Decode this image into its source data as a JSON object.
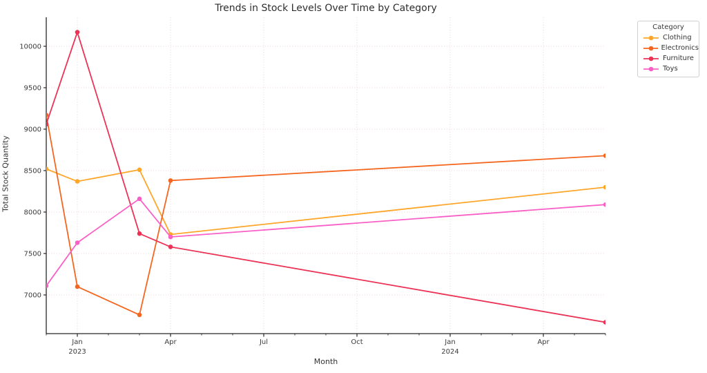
{
  "chart_data": {
    "type": "line",
    "title": "Trends in Stock Levels Over Time by Category",
    "xlabel": "Month",
    "ylabel": "Total Stock Quantity",
    "x": [
      "Dec 2022",
      "Jan 2023",
      "Mar 2023",
      "Apr 2023",
      "Jun 2024"
    ],
    "x_month_offsets": [
      0,
      1,
      3,
      4,
      18
    ],
    "series": [
      {
        "name": "Clothing",
        "color": "#FFA528",
        "values": [
          8520,
          8370,
          8510,
          7730,
          8300
        ]
      },
      {
        "name": "Electronics",
        "color": "#F4661F",
        "values": [
          9170,
          7100,
          6760,
          8380,
          8680
        ]
      },
      {
        "name": "Furniture",
        "color": "#EC3255",
        "values": [
          9060,
          10170,
          7740,
          7580,
          6670
        ]
      },
      {
        "name": "Toys",
        "color": "#F95FC6",
        "values": [
          7110,
          7630,
          8160,
          7700,
          8090
        ]
      }
    ],
    "y_ticks": [
      7000,
      7500,
      8000,
      8500,
      9000,
      9500,
      10000
    ],
    "x_major_ticks": [
      {
        "month_offset": 1,
        "label": "Jan",
        "year": "2023"
      },
      {
        "month_offset": 4,
        "label": "Apr",
        "year": ""
      },
      {
        "month_offset": 7,
        "label": "Jul",
        "year": ""
      },
      {
        "month_offset": 10,
        "label": "Oct",
        "year": ""
      },
      {
        "month_offset": 13,
        "label": "Jan",
        "year": "2024"
      },
      {
        "month_offset": 16,
        "label": "Apr",
        "year": ""
      }
    ],
    "x_minor_tick_months": 19,
    "ylim": [
      6533,
      10350
    ],
    "grid": {
      "linestyle": "dotted",
      "color": "#efd8d8"
    },
    "legend": {
      "title": "Category",
      "position": "upper-right"
    }
  },
  "style_colors": {
    "axis_spine": "#262626",
    "tick_label": "#3a3a3a",
    "background": "#ffffff"
  }
}
